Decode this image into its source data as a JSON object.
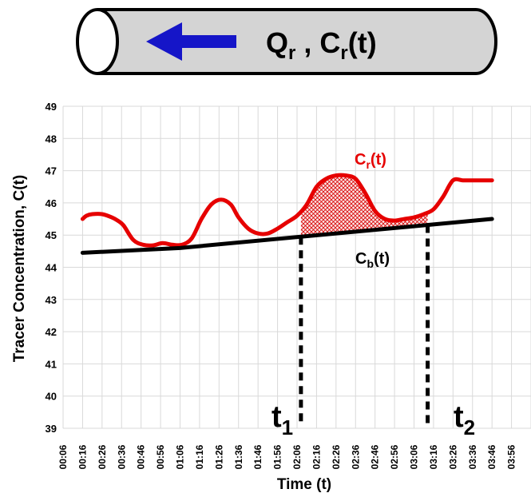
{
  "pipe": {
    "flow_label": {
      "q": "Q",
      "q_sub": "r",
      "sep": " , ",
      "c": "C",
      "c_sub": "r",
      "c_arg": "(t)"
    },
    "colors": {
      "pipe_fill": "#d4d4d4",
      "arrow": "#1515c8",
      "outline": "#000000"
    }
  },
  "labels": {
    "cr": {
      "base": "C",
      "sub": "r",
      "arg": "(t)"
    },
    "cb": {
      "base": "C",
      "sub": "b",
      "arg": "(t)"
    },
    "t1": {
      "base": "t",
      "sub": "1"
    },
    "t2": {
      "base": "t",
      "sub": "2"
    }
  },
  "chart_data": {
    "type": "line",
    "title": "",
    "xlabel": "Time (t)",
    "ylabel": "Tracer Concentration, C(t)",
    "ylim": [
      39,
      49
    ],
    "yticks": [
      39,
      40,
      41,
      42,
      43,
      44,
      45,
      46,
      47,
      48,
      49
    ],
    "xticks": [
      "00:06",
      "00:16",
      "00:26",
      "00:36",
      "00:46",
      "00:56",
      "01:06",
      "01:16",
      "01:26",
      "01:36",
      "01:46",
      "01:56",
      "02:06",
      "02:16",
      "02:26",
      "02:36",
      "02:46",
      "02:56",
      "03:06",
      "03:16",
      "03:26",
      "03:36",
      "03:46",
      "03:56"
    ],
    "x_unit": "minutes",
    "grid": true,
    "series": [
      {
        "name": "Cr(t)",
        "color": "#e60000",
        "x": [
          16,
          18,
          21,
          26,
          31,
          34,
          37,
          42,
          47,
          52,
          57,
          62,
          67,
          72,
          77,
          82,
          87,
          92,
          96,
          101,
          106,
          111,
          116,
          121,
          126,
          131,
          136,
          141,
          146,
          151,
          156,
          161,
          166,
          171,
          176,
          181,
          186,
          191,
          196,
          201,
          206,
          211,
          216,
          221,
          226
        ],
        "y": [
          45.5,
          45.6,
          45.65,
          45.65,
          45.55,
          45.45,
          45.3,
          44.85,
          44.7,
          44.68,
          44.75,
          44.7,
          44.7,
          44.9,
          45.5,
          45.95,
          46.1,
          45.95,
          45.55,
          45.2,
          45.05,
          45.05,
          45.2,
          45.4,
          45.6,
          45.95,
          46.5,
          46.75,
          46.85,
          46.85,
          46.75,
          46.3,
          45.75,
          45.5,
          45.45,
          45.5,
          45.55,
          45.65,
          45.8,
          46.2,
          46.7,
          46.7,
          46.7,
          46.7,
          46.7
        ]
      },
      {
        "name": "Cb(t)",
        "color": "#000000",
        "x": [
          16,
          66,
          226
        ],
        "y": [
          44.45,
          44.6,
          45.5
        ]
      }
    ],
    "annotations": [
      {
        "label": "t1",
        "x": 128
      },
      {
        "label": "t2",
        "x": 193
      }
    ],
    "shaded_area": {
      "from_x": 128,
      "to_x": 193,
      "between": [
        "Cr(t)",
        "Cb(t)"
      ],
      "pattern": "red crosshatch"
    }
  }
}
